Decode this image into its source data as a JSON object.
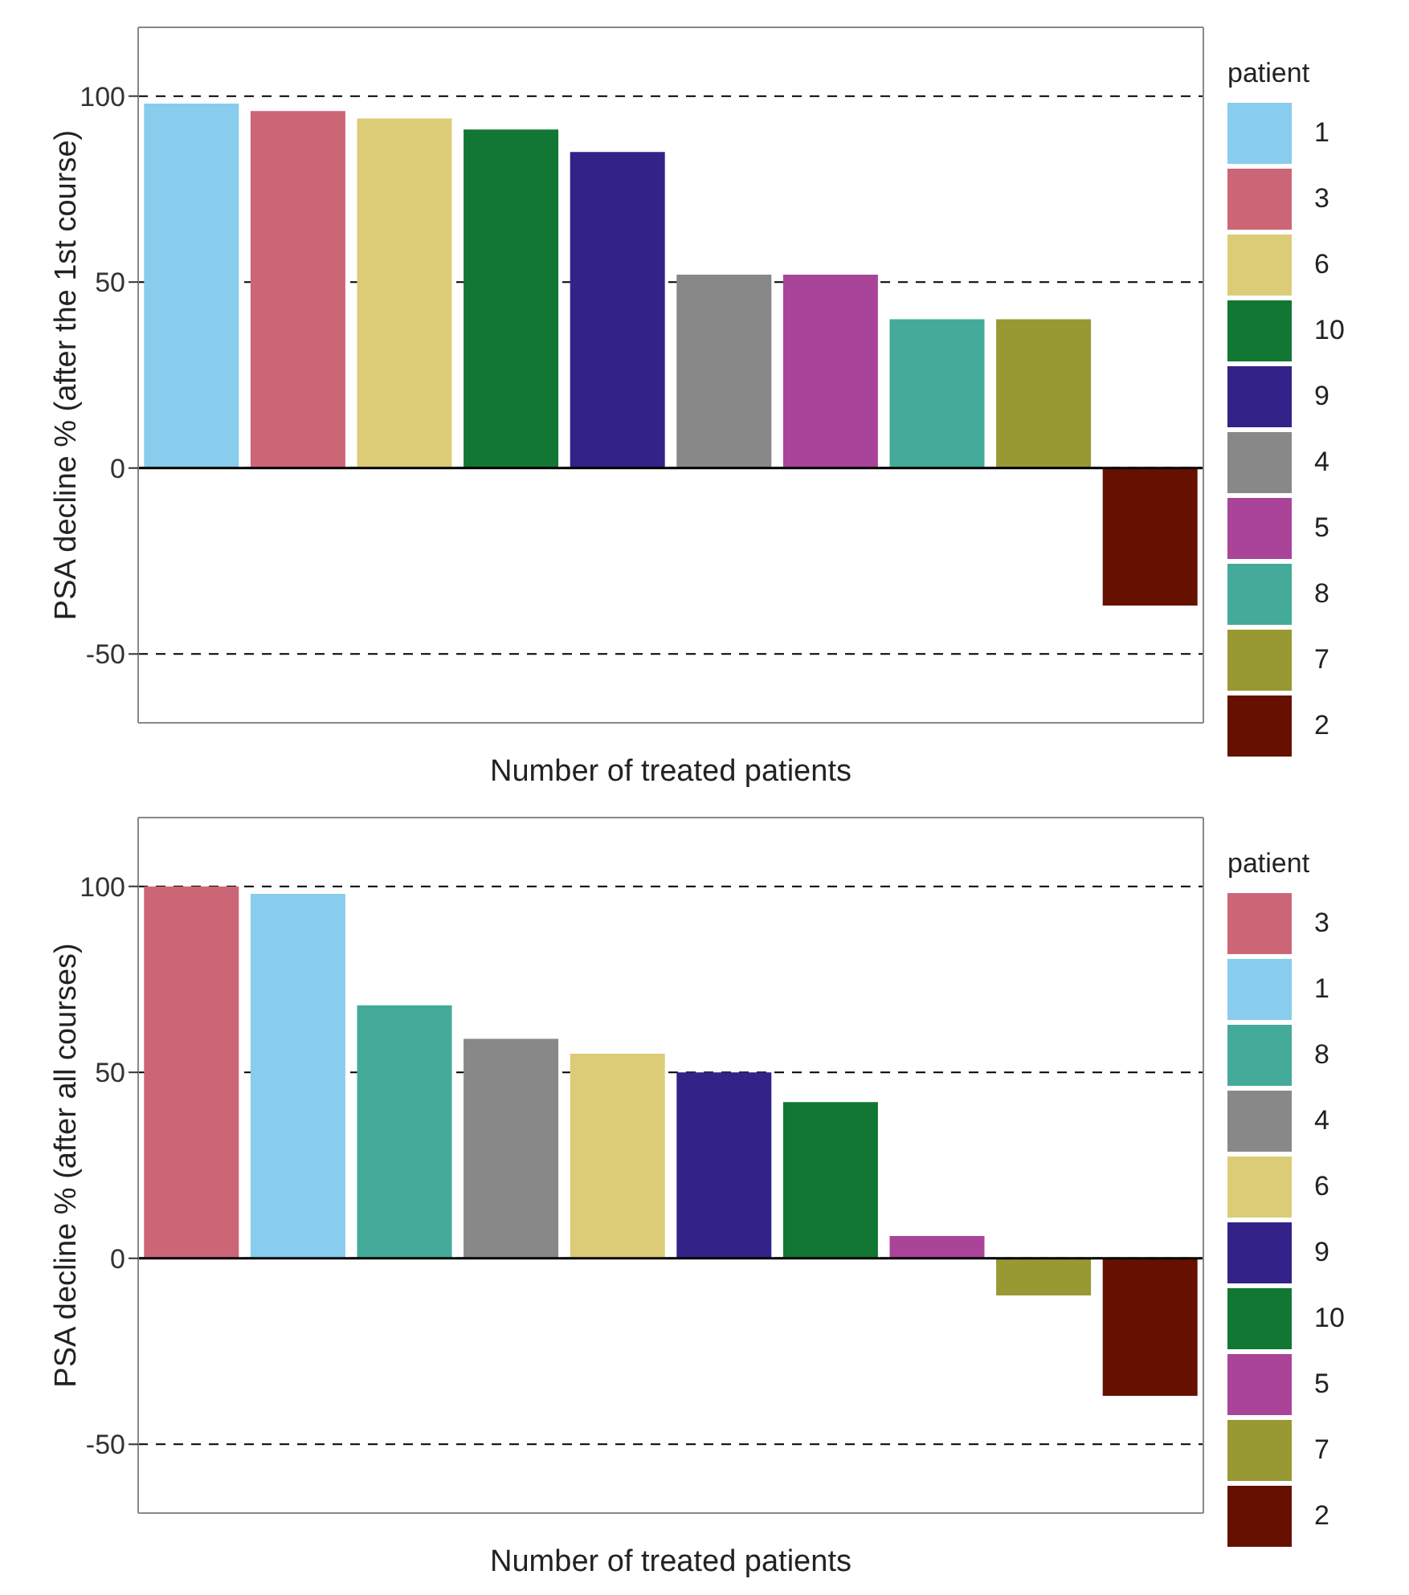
{
  "chart_data": [
    {
      "type": "bar",
      "stacked": true,
      "ylabel": "PSA decline % (after the 1st course)",
      "xlabel": "Number of treated patients",
      "legend_title": "patient",
      "legend": "right",
      "grid": "y",
      "categories": [
        null,
        null,
        null,
        null,
        null,
        null,
        null,
        null,
        null,
        null
      ],
      "ylim": [
        -68.5,
        118.5
      ],
      "yticks": [
        -50,
        0,
        50,
        100
      ],
      "ref_lines": [
        {
          "axis": "y",
          "value": 0,
          "color": "#000000"
        }
      ],
      "series": [
        {
          "name": "1",
          "color": "#88ccee",
          "values": [
            98,
            null,
            null,
            null,
            null,
            null,
            null,
            null,
            null,
            null
          ]
        },
        {
          "name": "3",
          "color": "#cc6677",
          "values": [
            null,
            96,
            null,
            null,
            null,
            null,
            null,
            null,
            null,
            null
          ]
        },
        {
          "name": "6",
          "color": "#ddcc77",
          "values": [
            null,
            null,
            94,
            null,
            null,
            null,
            null,
            null,
            null,
            null
          ]
        },
        {
          "name": "10",
          "color": "#117733",
          "values": [
            null,
            null,
            null,
            91,
            null,
            null,
            null,
            null,
            null,
            null
          ]
        },
        {
          "name": "9",
          "color": "#332288",
          "values": [
            null,
            null,
            null,
            null,
            85,
            null,
            null,
            null,
            null,
            null
          ]
        },
        {
          "name": "4",
          "color": "#888888",
          "values": [
            null,
            null,
            null,
            null,
            null,
            52,
            null,
            null,
            null,
            null
          ]
        },
        {
          "name": "5",
          "color": "#aa4499",
          "values": [
            null,
            null,
            null,
            null,
            null,
            null,
            52,
            null,
            null,
            null
          ]
        },
        {
          "name": "8",
          "color": "#44aa99",
          "values": [
            null,
            null,
            null,
            null,
            null,
            null,
            null,
            40,
            null,
            null
          ]
        },
        {
          "name": "7",
          "color": "#999933",
          "values": [
            null,
            null,
            null,
            null,
            null,
            null,
            null,
            null,
            40,
            null
          ]
        },
        {
          "name": "2",
          "color": "#661100",
          "values": [
            null,
            null,
            null,
            null,
            null,
            null,
            null,
            null,
            null,
            -37
          ]
        }
      ]
    },
    {
      "type": "bar",
      "stacked": true,
      "ylabel": "PSA decline % (after all courses)",
      "xlabel": "Number of treated patients",
      "legend_title": "patient",
      "legend": "right",
      "grid": "y",
      "categories": [
        null,
        null,
        null,
        null,
        null,
        null,
        null,
        null,
        null,
        null
      ],
      "ylim": [
        -68.5,
        118.5
      ],
      "yticks": [
        -50,
        0,
        50,
        100
      ],
      "ref_lines": [
        {
          "axis": "y",
          "value": 0,
          "color": "#000000"
        }
      ],
      "series": [
        {
          "name": "3",
          "color": "#cc6677",
          "values": [
            100,
            null,
            null,
            null,
            null,
            null,
            null,
            null,
            null,
            null
          ]
        },
        {
          "name": "1",
          "color": "#88ccee",
          "values": [
            null,
            98,
            null,
            null,
            null,
            null,
            null,
            null,
            null,
            null
          ]
        },
        {
          "name": "8",
          "color": "#44aa99",
          "values": [
            null,
            null,
            68,
            null,
            null,
            null,
            null,
            null,
            null,
            null
          ]
        },
        {
          "name": "4",
          "color": "#888888",
          "values": [
            null,
            null,
            null,
            59,
            null,
            null,
            null,
            null,
            null,
            null
          ]
        },
        {
          "name": "6",
          "color": "#ddcc77",
          "values": [
            null,
            null,
            null,
            null,
            55,
            null,
            null,
            null,
            null,
            null
          ]
        },
        {
          "name": "9",
          "color": "#332288",
          "values": [
            null,
            null,
            null,
            null,
            null,
            50,
            null,
            null,
            null,
            null
          ]
        },
        {
          "name": "10",
          "color": "#117733",
          "values": [
            null,
            null,
            null,
            null,
            null,
            null,
            42,
            null,
            null,
            null
          ]
        },
        {
          "name": "5",
          "color": "#aa4499",
          "values": [
            null,
            null,
            null,
            null,
            null,
            null,
            null,
            6,
            null,
            null
          ]
        },
        {
          "name": "7",
          "color": "#999933",
          "values": [
            null,
            null,
            null,
            null,
            null,
            null,
            null,
            null,
            -10,
            null
          ]
        },
        {
          "name": "2",
          "color": "#661100",
          "values": [
            null,
            null,
            null,
            null,
            null,
            null,
            null,
            null,
            null,
            -37
          ]
        }
      ]
    }
  ]
}
